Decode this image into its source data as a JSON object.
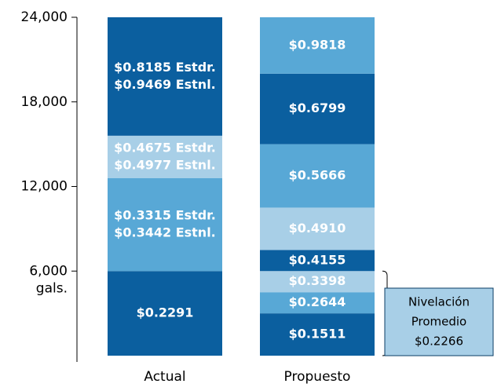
{
  "chart_data": {
    "type": "stacked_bar",
    "ylim": [
      0,
      24000
    ],
    "yticks": [
      {
        "value": 6000,
        "label": "6,000"
      },
      {
        "value": 12000,
        "label": "12,000"
      },
      {
        "value": 18000,
        "label": "18,000"
      },
      {
        "value": 24000,
        "label": "24,000"
      }
    ],
    "y_unit": "gals.",
    "categories": [
      "Actual",
      "Propuesto"
    ],
    "stacks": [
      [
        {
          "value": 6000,
          "color": "#0b5f9f",
          "labels": [
            "$0.2291"
          ]
        },
        {
          "value": 6600,
          "color": "#58a8d6",
          "labels": [
            "$0.3315 Estdr.",
            "$0.3442 Estnl."
          ]
        },
        {
          "value": 3000,
          "color": "#a8cfe7",
          "labels": [
            "$0.4675 Estdr.",
            "$0.4977 Estnl."
          ]
        },
        {
          "value": 8400,
          "color": "#0b5f9f",
          "labels": [
            "$0.8185 Estdr.",
            "$0.9469 Estnl."
          ]
        }
      ],
      [
        {
          "value": 3000,
          "color": "#0b5f9f",
          "labels": [
            "$0.1511"
          ]
        },
        {
          "value": 1500,
          "color": "#58a8d6",
          "labels": [
            "$0.2644"
          ]
        },
        {
          "value": 1500,
          "color": "#a8cfe7",
          "labels": [
            "$0.3398"
          ]
        },
        {
          "value": 1500,
          "color": "#0b5f9f",
          "labels": [
            "$0.4155"
          ]
        },
        {
          "value": 3000,
          "color": "#a8cfe7",
          "labels": [
            "$0.4910"
          ]
        },
        {
          "value": 4500,
          "color": "#58a8d6",
          "labels": [
            "$0.5666"
          ]
        },
        {
          "value": 5000,
          "color": "#0b5f9f",
          "labels": [
            "$0.6799"
          ]
        },
        {
          "value": 4000,
          "color": "#58a8d6",
          "labels": [
            "$0.9818"
          ]
        }
      ]
    ],
    "annotation": {
      "lines": [
        "Nivelación",
        "Promedio",
        "$0.2266"
      ]
    }
  }
}
